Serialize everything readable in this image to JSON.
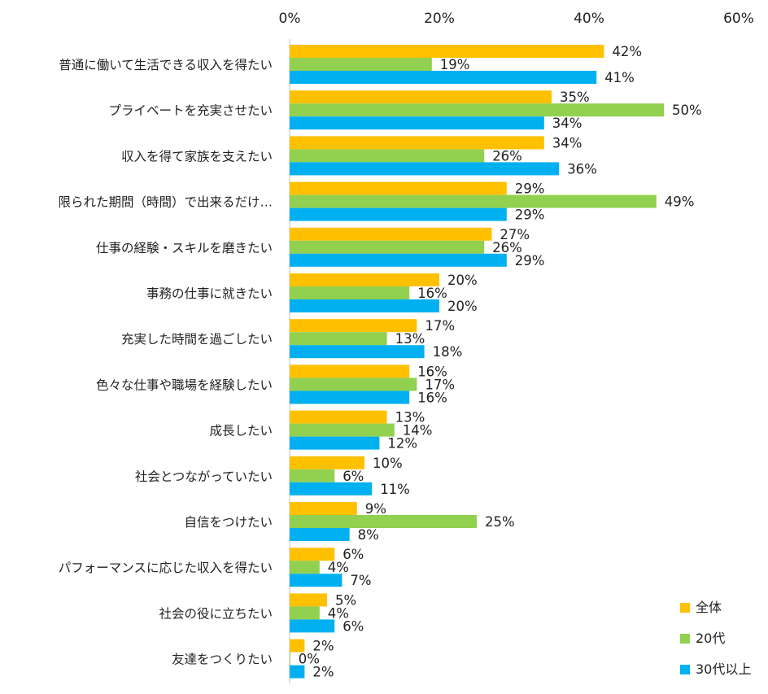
{
  "chart_data": {
    "type": "bar",
    "orientation": "horizontal",
    "categories": [
      "普通に働いて生活できる収入を得たい",
      "プライベートを充実させたい",
      "収入を得て家族を支えたい",
      "限られた期間（時間）で出来るだけ…",
      "仕事の経験・スキルを磨きたい",
      "事務の仕事に就きたい",
      "充実した時間を過ごしたい",
      "色々な仕事や職場を経験したい",
      "成長したい",
      "社会とつながっていたい",
      "自信をつけたい",
      "パフォーマンスに応じた収入を得たい",
      "社会の役に立ちたい",
      "友達をつくりたい"
    ],
    "series": [
      {
        "name": "全体",
        "color": "#ffc000",
        "values": [
          42,
          35,
          34,
          29,
          27,
          20,
          17,
          16,
          13,
          10,
          9,
          6,
          5,
          2
        ],
        "labels": [
          "42%",
          "35%",
          "34%",
          "29%",
          "27%",
          "20%",
          "17%",
          "16%",
          "13%",
          "10%",
          "9%",
          "6%",
          "5%",
          "2%"
        ]
      },
      {
        "name": "20代",
        "color": "#92d050",
        "values": [
          19,
          50,
          26,
          49,
          26,
          16,
          13,
          17,
          14,
          6,
          25,
          4,
          4,
          0
        ],
        "labels": [
          "19%",
          "50%",
          "26%",
          "49%",
          "26%",
          "16%",
          "13%",
          "17%",
          "14%",
          "6%",
          "25%",
          "4%",
          "4%",
          "0%"
        ]
      },
      {
        "name": "30代以上",
        "color": "#00b0f0",
        "values": [
          41,
          34,
          36,
          29,
          29,
          20,
          18,
          16,
          12,
          11,
          8,
          7,
          6,
          2
        ],
        "labels": [
          "41%",
          "34%",
          "36%",
          "29%",
          "29%",
          "20%",
          "18%",
          "16%",
          "12%",
          "11%",
          "8%",
          "7%",
          "6%",
          "2%"
        ]
      }
    ],
    "xlim": [
      0,
      60
    ],
    "ticks": [
      0,
      20,
      40,
      60
    ],
    "tick_labels": [
      "0%",
      "20%",
      "40%",
      "60%"
    ],
    "axis_position": "top",
    "grid": false,
    "legend_position": "bottom-right",
    "title": "",
    "xlabel": "",
    "ylabel": ""
  }
}
